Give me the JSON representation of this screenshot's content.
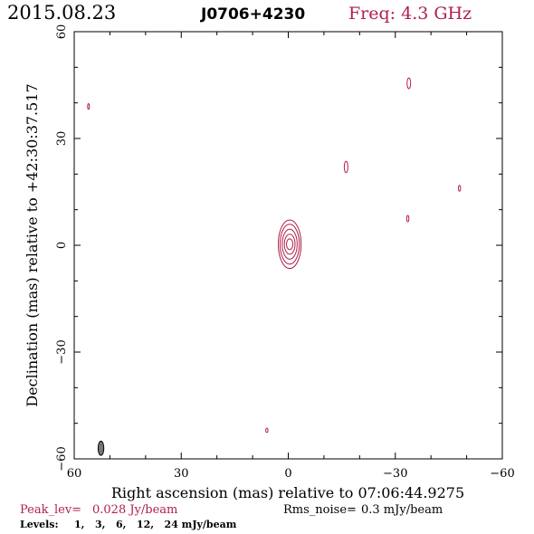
{
  "header": {
    "date": "2015.08.23",
    "source": "J0706+4230",
    "freq": "Freq: 4.3 GHz"
  },
  "colors": {
    "contour": "#b0204a",
    "beam_fill": "#777777",
    "text": "#000000"
  },
  "chart_data": {
    "type": "contour",
    "xlabel": "Right ascension (mas) relative to 07:06:44.9275",
    "ylabel": "Declination (mas) relative to +42:30:37.517",
    "xlim": [
      60,
      -60
    ],
    "ylim": [
      -60,
      60
    ],
    "x_ticks": [
      60,
      30,
      0,
      -30,
      -60
    ],
    "y_ticks": [
      60,
      30,
      0,
      -30,
      -60
    ],
    "x_tick_labels": [
      "60",
      "30",
      "0",
      "−30",
      "−60"
    ],
    "y_tick_labels": [
      "60",
      "30",
      "0",
      "−30",
      "−60"
    ],
    "peak_level_label": "Peak_lev=",
    "peak_level_value": "0.028 Jy/beam",
    "rms_label": "Rms_noise=",
    "rms_value": "0.3 mJy/beam",
    "levels_label": "Levels:",
    "levels_text": "1,   3,   6,   12,   24 mJy/beam",
    "levels_mJy": [
      1,
      3,
      6,
      12,
      24
    ],
    "core": {
      "x": -0.4,
      "y": 0.3,
      "contours": [
        {
          "rx": 0.9,
          "ry": 1.5
        },
        {
          "rx": 1.5,
          "ry": 2.8
        },
        {
          "rx": 2.1,
          "ry": 4.2
        },
        {
          "rx": 2.7,
          "ry": 5.6
        },
        {
          "rx": 3.2,
          "ry": 6.8
        }
      ]
    },
    "isolated_contours": [
      {
        "x": 56.0,
        "y": 39.0,
        "rx": 0.25,
        "ry": 0.8
      },
      {
        "x": -33.8,
        "y": 45.5,
        "rx": 0.5,
        "ry": 1.5
      },
      {
        "x": -16.2,
        "y": 22.0,
        "rx": 0.5,
        "ry": 1.6
      },
      {
        "x": -48.0,
        "y": 16.0,
        "rx": 0.3,
        "ry": 0.8
      },
      {
        "x": -33.5,
        "y": 7.5,
        "rx": 0.3,
        "ry": 0.9
      },
      {
        "x": 6.0,
        "y": -52.0,
        "rx": 0.3,
        "ry": 0.6
      }
    ],
    "beam": {
      "x": 52.5,
      "y": -57.0,
      "rx": 0.8,
      "ry": 2.0
    }
  }
}
